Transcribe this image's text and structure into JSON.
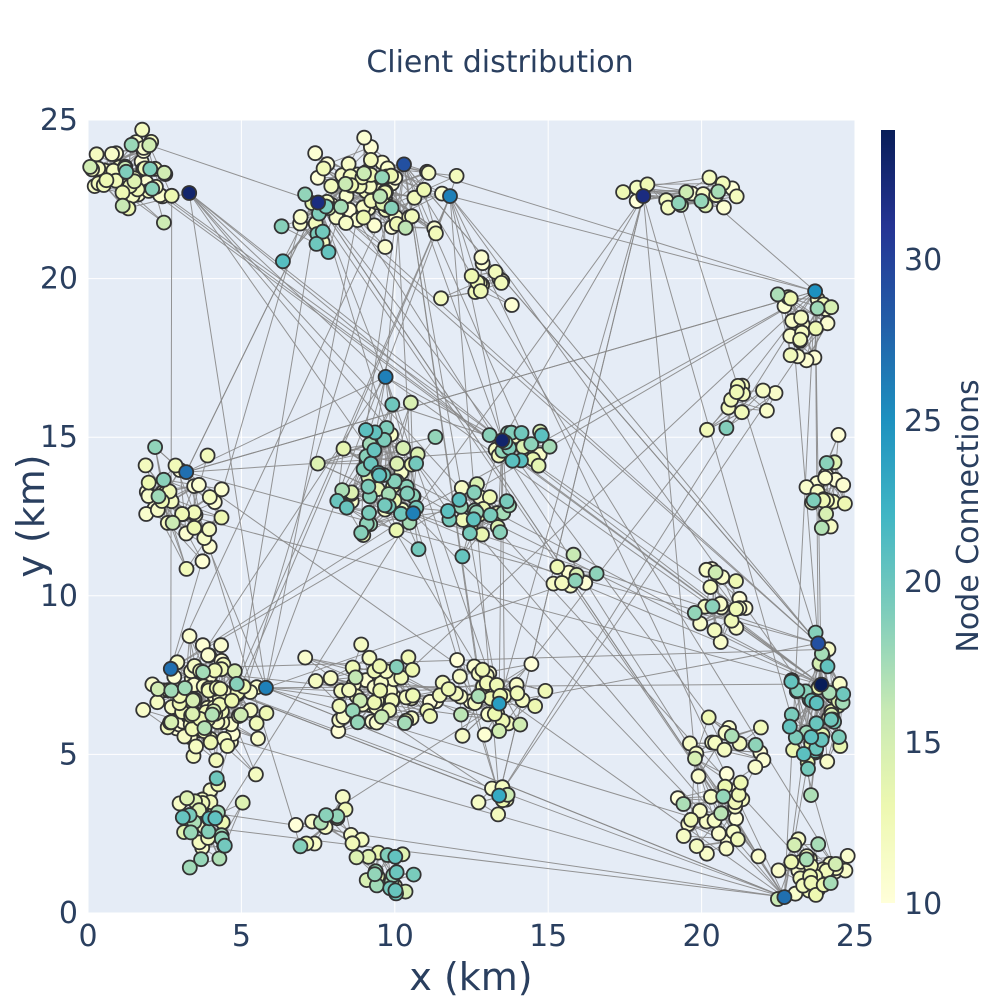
{
  "chart_data": {
    "type": "network-scatter",
    "title": "Client distribution",
    "xlabel": "x (km)",
    "ylabel": "y (km)",
    "xlim": [
      0,
      25
    ],
    "ylim": [
      0,
      25
    ],
    "x_ticks": [
      "0",
      "5",
      "10",
      "15",
      "20",
      "25"
    ],
    "y_ticks": [
      "0",
      "5",
      "10",
      "15",
      "20",
      "25"
    ],
    "grid": true,
    "colors": {
      "plot_background": "#e5ecf6",
      "grid": "#ffffff",
      "edge": "#888888",
      "node_outline": "#333333",
      "text": "#2a3f5f"
    },
    "colorbar": {
      "title": "Node Connections",
      "range": [
        10,
        34
      ],
      "ticks": [
        "10",
        "15",
        "20",
        "25",
        "30"
      ],
      "colorscale": [
        "#ffffd9",
        "#edf8b1",
        "#c7e9b4",
        "#7fcdbb",
        "#41b6c4",
        "#1d91c0",
        "#225ea8",
        "#253494",
        "#081d58"
      ]
    },
    "clusters": [
      {
        "cx": 1.5,
        "cy": 23.2,
        "sx": 1.3,
        "sy": 1.1,
        "n": 55,
        "level": 12
      },
      {
        "cx": 9.5,
        "cy": 22.8,
        "sx": 2.0,
        "sy": 1.3,
        "n": 70,
        "level": 14
      },
      {
        "cx": 7.5,
        "cy": 22.0,
        "sx": 0.8,
        "sy": 1.0,
        "n": 15,
        "level": 19
      },
      {
        "cx": 13.0,
        "cy": 20.0,
        "sx": 1.2,
        "sy": 0.8,
        "n": 15,
        "level": 11
      },
      {
        "cx": 19.5,
        "cy": 22.5,
        "sx": 1.6,
        "sy": 0.8,
        "n": 20,
        "level": 11
      },
      {
        "cx": 23.2,
        "cy": 18.5,
        "sx": 1.2,
        "sy": 1.1,
        "n": 22,
        "level": 12
      },
      {
        "cx": 21.3,
        "cy": 16.0,
        "sx": 1.1,
        "sy": 0.8,
        "n": 12,
        "level": 11
      },
      {
        "cx": 24.0,
        "cy": 13.5,
        "sx": 0.8,
        "sy": 1.3,
        "n": 20,
        "level": 12
      },
      {
        "cx": 3.0,
        "cy": 12.8,
        "sx": 1.3,
        "sy": 1.4,
        "n": 40,
        "level": 12
      },
      {
        "cx": 9.8,
        "cy": 13.5,
        "sx": 1.5,
        "sy": 1.8,
        "n": 60,
        "level": 17
      },
      {
        "cx": 12.8,
        "cy": 12.5,
        "sx": 1.1,
        "sy": 1.0,
        "n": 25,
        "level": 16
      },
      {
        "cx": 14.0,
        "cy": 14.8,
        "sx": 0.8,
        "sy": 0.7,
        "n": 20,
        "level": 18
      },
      {
        "cx": 15.8,
        "cy": 10.8,
        "sx": 0.8,
        "sy": 0.5,
        "n": 10,
        "level": 11
      },
      {
        "cx": 20.7,
        "cy": 9.8,
        "sx": 0.9,
        "sy": 1.1,
        "n": 20,
        "level": 11
      },
      {
        "cx": 3.8,
        "cy": 6.5,
        "sx": 1.6,
        "sy": 1.5,
        "n": 110,
        "level": 13
      },
      {
        "cx": 4.0,
        "cy": 3.0,
        "sx": 1.2,
        "sy": 1.1,
        "n": 35,
        "level": 16
      },
      {
        "cx": 9.5,
        "cy": 7.0,
        "sx": 2.0,
        "sy": 1.0,
        "n": 60,
        "level": 12
      },
      {
        "cx": 13.0,
        "cy": 6.8,
        "sx": 1.8,
        "sy": 1.0,
        "n": 40,
        "level": 11
      },
      {
        "cx": 7.8,
        "cy": 3.0,
        "sx": 1.3,
        "sy": 0.8,
        "n": 15,
        "level": 11
      },
      {
        "cx": 10.0,
        "cy": 1.2,
        "sx": 1.0,
        "sy": 0.7,
        "n": 20,
        "level": 18
      },
      {
        "cx": 13.5,
        "cy": 3.5,
        "sx": 0.6,
        "sy": 0.6,
        "n": 7,
        "level": 11
      },
      {
        "cx": 20.5,
        "cy": 3.2,
        "sx": 1.2,
        "sy": 1.4,
        "n": 30,
        "level": 11
      },
      {
        "cx": 23.8,
        "cy": 6.2,
        "sx": 0.8,
        "sy": 2.2,
        "n": 50,
        "level": 16
      },
      {
        "cx": 23.6,
        "cy": 1.5,
        "sx": 1.0,
        "sy": 0.9,
        "n": 35,
        "level": 13
      },
      {
        "cx": 21.0,
        "cy": 5.5,
        "sx": 1.3,
        "sy": 0.9,
        "n": 15,
        "level": 11
      }
    ],
    "highlight_points": [
      {
        "x": 3.3,
        "y": 22.7,
        "c": 33
      },
      {
        "x": 7.5,
        "y": 22.4,
        "c": 32
      },
      {
        "x": 10.3,
        "y": 23.6,
        "c": 29
      },
      {
        "x": 11.8,
        "y": 22.6,
        "c": 26
      },
      {
        "x": 18.1,
        "y": 22.6,
        "c": 32
      },
      {
        "x": 23.7,
        "y": 19.6,
        "c": 25
      },
      {
        "x": 9.7,
        "y": 16.9,
        "c": 26
      },
      {
        "x": 3.2,
        "y": 13.9,
        "c": 27
      },
      {
        "x": 13.5,
        "y": 14.9,
        "c": 33
      },
      {
        "x": 10.6,
        "y": 12.6,
        "c": 26
      },
      {
        "x": 2.7,
        "y": 7.7,
        "c": 27
      },
      {
        "x": 5.8,
        "y": 7.1,
        "c": 26
      },
      {
        "x": 13.4,
        "y": 6.6,
        "c": 24
      },
      {
        "x": 13.4,
        "y": 3.7,
        "c": 23
      },
      {
        "x": 23.8,
        "y": 8.5,
        "c": 29
      },
      {
        "x": 23.9,
        "y": 7.2,
        "c": 34
      },
      {
        "x": 22.7,
        "y": 0.5,
        "c": 27
      }
    ],
    "edges_per_node": 2,
    "long_edges": 130
  }
}
